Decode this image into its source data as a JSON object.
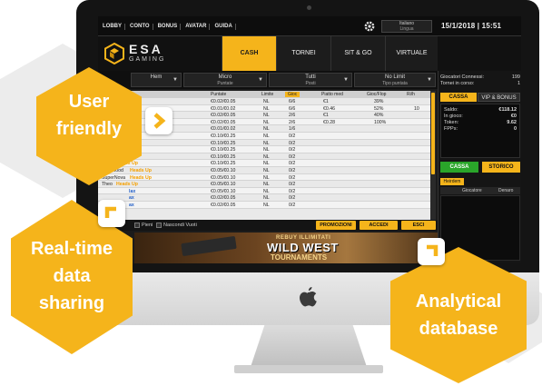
{
  "menu": {
    "items": [
      "LOBBY",
      "CONTO",
      "BONUS",
      "AVATAR",
      "GUIDA"
    ]
  },
  "language": {
    "value": "Italiano",
    "label": "Lingua"
  },
  "datetime": "15/1/2018 | 15:51",
  "logo": {
    "name": "ESA",
    "sub": "GAMING"
  },
  "tabs": [
    "CASH",
    "TORNEI",
    "SIT & GO",
    "VIRTUALE"
  ],
  "filters": [
    {
      "value": "Hem",
      "label": ""
    },
    {
      "value": "Micro",
      "label": "Puntate"
    },
    {
      "value": "Tutti",
      "label": "Posti"
    },
    {
      "value": "No Limit",
      "label": "Tipo puntata"
    }
  ],
  "table": {
    "headers": [
      "Puntate",
      "Limite",
      "Gioc",
      "Piatto med",
      "Gioc/Flop",
      "Ri/h"
    ],
    "rows": [
      {
        "name": "",
        "tag": "",
        "stakes": "€0.02/€0.05",
        "limit": "NL",
        "players": "6/6",
        "pot": "€1",
        "flop": "39%",
        "hands": ""
      },
      {
        "name": "",
        "tag": "",
        "stakes": "€0.01/€0.02",
        "limit": "NL",
        "players": "6/6",
        "pot": "€0.46",
        "flop": "52%",
        "hands": "10"
      },
      {
        "name": "",
        "tag": "",
        "stakes": "€0.02/€0.05",
        "limit": "NL",
        "players": "2/6",
        "pot": "€1",
        "flop": "40%",
        "hands": ""
      },
      {
        "name": "",
        "tag": "",
        "stakes": "€0.02/€0.05",
        "limit": "NL",
        "players": "2/6",
        "pot": "€0.28",
        "flop": "100%",
        "hands": ""
      },
      {
        "name": "",
        "tag": "",
        "stakes": "€0.01/€0.02",
        "limit": "NL",
        "players": "1/6",
        "pot": "",
        "flop": "",
        "hands": ""
      },
      {
        "name": "",
        "tag": "",
        "stakes": "€0.10/€0.25",
        "limit": "NL",
        "players": "0/2",
        "pot": "",
        "flop": "",
        "hands": ""
      },
      {
        "name": "",
        "tag": "",
        "stakes": "€0.10/€0.25",
        "limit": "NL",
        "players": "0/2",
        "pot": "",
        "flop": "",
        "hands": ""
      },
      {
        "name": "",
        "tag": "",
        "stakes": "€0.10/€0.25",
        "limit": "NL",
        "players": "0/2",
        "pot": "",
        "flop": "",
        "hands": ""
      },
      {
        "name": "et",
        "tag": "6-Max",
        "stakes": "€0.10/€0.25",
        "limit": "NL",
        "players": "0/2",
        "pot": "",
        "flop": "",
        "hands": ""
      },
      {
        "name": "ogna",
        "tag": "Heads Up",
        "stakes": "€0.10/€0.25",
        "limit": "NL",
        "players": "0/2",
        "pot": "",
        "flop": "",
        "hands": ""
      },
      {
        "name": "Isherwood",
        "tag": "Heads Up",
        "stakes": "€0.05/€0.10",
        "limit": "NL",
        "players": "0/2",
        "pot": "",
        "flop": "",
        "hands": ""
      },
      {
        "name": "SuperNova",
        "tag": "Heads Up",
        "stakes": "€0.05/€0.10",
        "limit": "NL",
        "players": "0/2",
        "pot": "",
        "flop": "",
        "hands": ""
      },
      {
        "name": "Theo",
        "tag": "Heads Up",
        "stakes": "€0.05/€0.10",
        "limit": "NL",
        "players": "0/2",
        "pot": "",
        "flop": "",
        "hands": ""
      },
      {
        "name": "",
        "tag": "lax",
        "stakes": "€0.05/€0.10",
        "limit": "NL",
        "players": "0/2",
        "pot": "",
        "flop": "",
        "hands": ""
      },
      {
        "name": "",
        "tag": "ax",
        "stakes": "€0.02/€0.05",
        "limit": "NL",
        "players": "0/2",
        "pot": "",
        "flop": "",
        "hands": ""
      },
      {
        "name": "",
        "tag": "ax",
        "stakes": "€0.02/€0.05",
        "limit": "NL",
        "players": "0/2",
        "pot": "",
        "flop": "",
        "hands": ""
      }
    ]
  },
  "actions": {
    "pieni": "Pieni",
    "nascondi": "Nascondi Vuoti",
    "promozioni": "PROMOZIONI",
    "accedi": "ACCEDI",
    "esci": "ESCI"
  },
  "banner": {
    "small": "REBUY ILLIMITATI",
    "big": "WILD WEST",
    "sub": "TOURNAMENTS"
  },
  "connections": {
    "players_label": "Giocatori Connessi:",
    "players_value": "199",
    "tourneys_label": "Tornei in corso:",
    "tourneys_value": "1"
  },
  "right_tabs": [
    "CASSA",
    "VIP & BONUS"
  ],
  "balance": {
    "saldo_label": "Saldo:",
    "saldo_value": "€118.12",
    "gioco_label": "In gioco:",
    "gioco_value": "€0",
    "token_label": "Token:",
    "token_value": "9.62",
    "fpp_label": "FPPs:",
    "fpp_value": "0"
  },
  "right_buttons": [
    "CASSA",
    "STORICO"
  ],
  "players_panel": {
    "tab": "Heirdem",
    "col_player": "Giocatore",
    "col_money": "Denaro"
  },
  "callouts": {
    "user": [
      "User",
      "friendly"
    ],
    "realtime": [
      "Real-time",
      "data",
      "sharing"
    ],
    "analytical": [
      "Analytical",
      "database"
    ]
  },
  "colors": {
    "accent": "#f5b41b",
    "green": "#2aa52a",
    "screen_bg": "#1b1b1b"
  }
}
